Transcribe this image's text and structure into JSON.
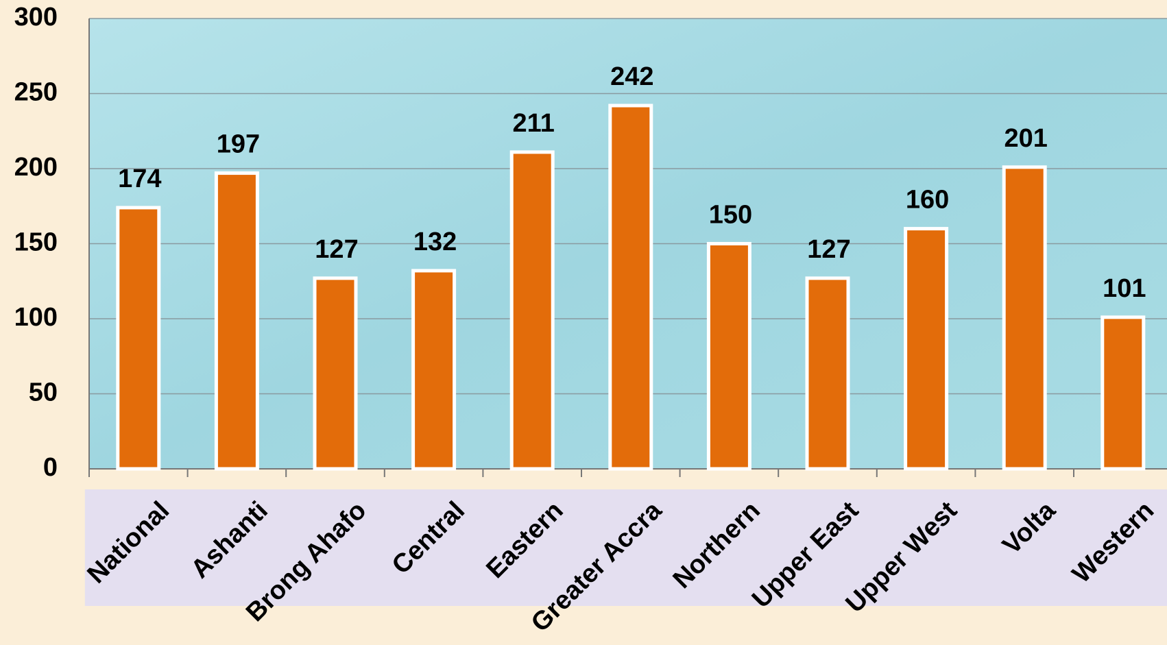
{
  "chart_data": {
    "type": "bar",
    "categories": [
      "National",
      "Ashanti",
      "Brong Ahafo",
      "Central",
      "Eastern",
      "Greater Accra",
      "Northern",
      "Upper East",
      "Upper West",
      "Volta",
      "Western"
    ],
    "values": [
      174,
      197,
      127,
      132,
      211,
      242,
      150,
      127,
      160,
      201,
      101
    ],
    "color": "#e36c0a",
    "ylim": [
      0,
      300
    ],
    "yticks": [
      0,
      50,
      100,
      150,
      200,
      250,
      300
    ],
    "grid": true
  }
}
